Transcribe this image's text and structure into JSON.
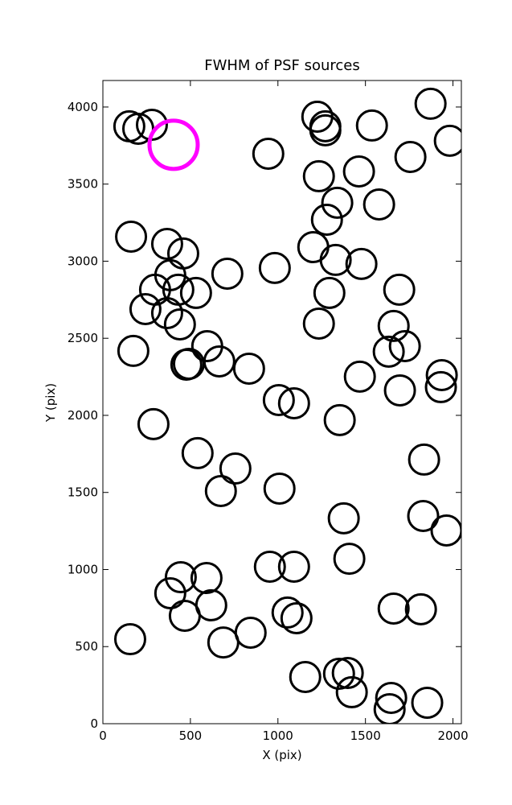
{
  "chart_data": {
    "type": "scatter",
    "title": "FWHM of PSF sources",
    "x_label": "X (pix)",
    "y_label": "Y (pix)",
    "xlim": [
      0,
      2048
    ],
    "ylim": [
      0,
      4172
    ],
    "xticks": [
      0,
      500,
      1000,
      1500,
      2000
    ],
    "yticks": [
      0,
      500,
      1000,
      1500,
      2000,
      2500,
      3000,
      3500,
      4000
    ],
    "series": [
      {
        "color": "#000000",
        "x": [
          151,
          202,
          280,
          945,
          1225,
          1271,
          1271,
          1537,
          1872,
          1982,
          1757,
          1463,
          1234,
          1339,
          1578,
          1280,
          161,
          367,
          459,
          1202,
          1330,
          711,
          982,
          1477,
          385,
          298,
          431,
          532,
          1693,
          1294,
          243,
          367,
          440,
          1234,
          1661,
          174,
          596,
          1633,
          1725,
          477,
          491,
          665,
          835,
          1468,
          1936,
          1931,
          1697,
          1005,
          1092,
          1353,
          289,
          541,
          757,
          674,
          1009,
          1835,
          1376,
          1830,
          1963,
          1408,
          954,
          1092,
          445,
          592,
          385,
          619,
          1055,
          1106,
          468,
          1661,
          1817,
          844,
          688,
          156,
          1156,
          1349,
          1399,
          1422,
          1647,
          1638,
          1853
        ],
        "values": [
          3875,
          3859,
          3885,
          3697,
          3937,
          3875,
          3849,
          3880,
          4021,
          3781,
          3676,
          3582,
          3551,
          3379,
          3368,
          3269,
          3159,
          3112,
          3050,
          3091,
          3008,
          2919,
          2956,
          2982,
          2909,
          2815,
          2815,
          2794,
          2815,
          2794,
          2689,
          2663,
          2590,
          2595,
          2580,
          2418,
          2449,
          2413,
          2449,
          2329,
          2334,
          2350,
          2303,
          2251,
          2261,
          2183,
          2162,
          2099,
          2078,
          1969,
          1943,
          1755,
          1655,
          1509,
          1525,
          1713,
          1332,
          1347,
          1253,
          1070,
          1018,
          1018,
          950,
          945,
          846,
          768,
          721,
          684,
          700,
          747,
          742,
          590,
          527,
          548,
          303,
          324,
          329,
          204,
          167,
          94,
          136
        ]
      },
      {
        "color": "#ff00ff",
        "x": [
          404
        ],
        "values": [
          3755
        ]
      }
    ]
  }
}
